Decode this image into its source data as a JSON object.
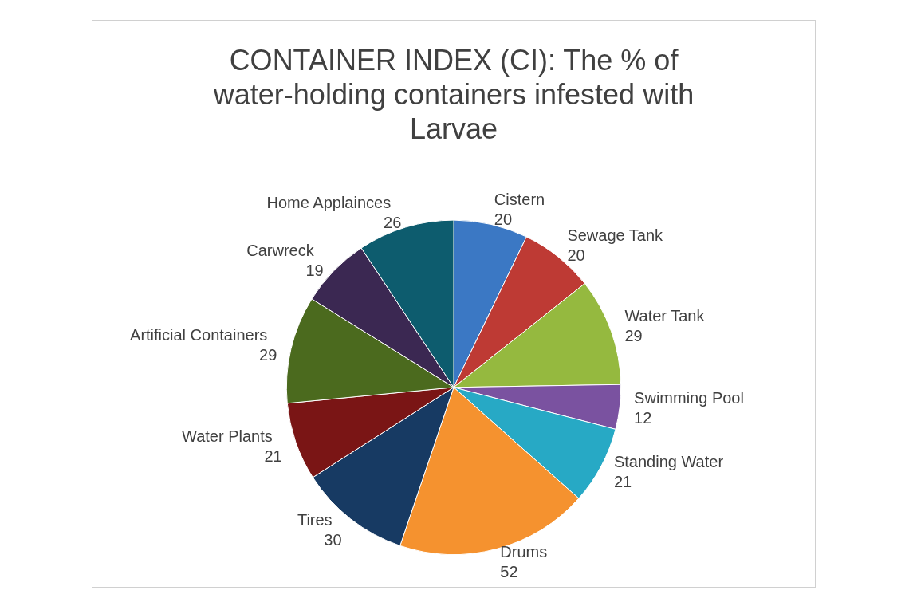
{
  "chart_data": {
    "type": "pie",
    "title": "CONTAINER INDEX (CI): The % of water-holding containers infested with Larvae",
    "categories": [
      "Cistern",
      "Sewage Tank",
      "Water Tank",
      "Swimming Pool",
      "Standing Water",
      "Drums",
      "Tires",
      "Water Plants",
      "Artificial Containers",
      "Carwreck",
      "Home Applainces"
    ],
    "values": [
      20,
      20,
      29,
      12,
      21,
      52,
      30,
      21,
      29,
      19,
      26
    ],
    "colors": [
      "#3b78c4",
      "#be3a34",
      "#95b93f",
      "#7a52a0",
      "#27a9c5",
      "#f5922f",
      "#173a63",
      "#7a1515",
      "#4b6a1e",
      "#3b2852",
      "#0d5c6e"
    ],
    "data_labels": true,
    "legend": false
  }
}
